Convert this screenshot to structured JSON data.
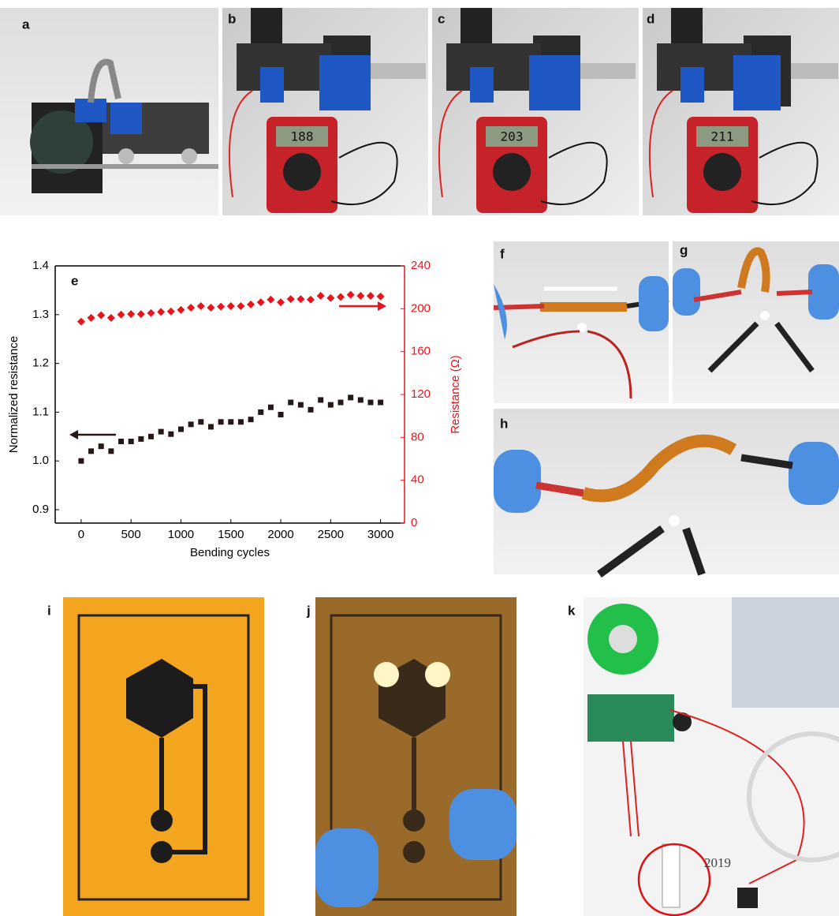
{
  "panels": {
    "labels": [
      "a",
      "b",
      "c",
      "d",
      "e",
      "f",
      "g",
      "h",
      "i",
      "j",
      "k"
    ]
  },
  "meter_readings": [
    "188",
    "203",
    "211"
  ],
  "photo_text": "2019",
  "chart_data": {
    "type": "scatter",
    "xlabel": "Bending cycles",
    "ylabel": "Normalized resistance",
    "y2label": "Resistance (Ω)",
    "x": [
      0,
      100,
      200,
      300,
      400,
      500,
      600,
      700,
      800,
      900,
      1000,
      1100,
      1200,
      1300,
      1400,
      1500,
      1600,
      1700,
      1800,
      1900,
      2000,
      2100,
      2200,
      2300,
      2400,
      2500,
      2600,
      2700,
      2800,
      2900,
      3000
    ],
    "series": [
      {
        "color": "#231815",
        "marker": "square",
        "values": [
          1.0,
          1.02,
          1.03,
          1.02,
          1.04,
          1.04,
          1.045,
          1.05,
          1.06,
          1.055,
          1.065,
          1.075,
          1.08,
          1.07,
          1.08,
          1.08,
          1.08,
          1.085,
          1.1,
          1.11,
          1.095,
          1.12,
          1.115,
          1.105,
          1.125,
          1.115,
          1.12,
          1.13,
          1.125,
          1.12,
          1.12
        ]
      },
      {
        "color": "#e8141b",
        "marker": "diamond",
        "axis": "y2",
        "values": [
          188,
          191.5,
          194,
          191.5,
          194.5,
          195,
          195,
          196,
          197,
          197.5,
          199,
          201,
          202.5,
          201,
          202,
          202.5,
          202.5,
          204,
          206,
          208.5,
          206,
          209,
          209,
          208.5,
          212,
          210,
          211,
          213,
          212,
          212,
          211.5
        ]
      }
    ],
    "xlim": [
      -260,
      3240
    ],
    "xticks": [
      0,
      500,
      1000,
      1500,
      2000,
      2500,
      3000
    ],
    "ylim": [
      0.8725,
      1.4
    ],
    "yticks": [
      0.9,
      {
        "value": 1,
        "label": "1.0"
      },
      1.1,
      1.2,
      1.3,
      1.4
    ],
    "y2lim": [
      0,
      240
    ],
    "y2ticks": [
      0,
      40,
      80,
      120,
      160,
      200,
      240
    ]
  }
}
